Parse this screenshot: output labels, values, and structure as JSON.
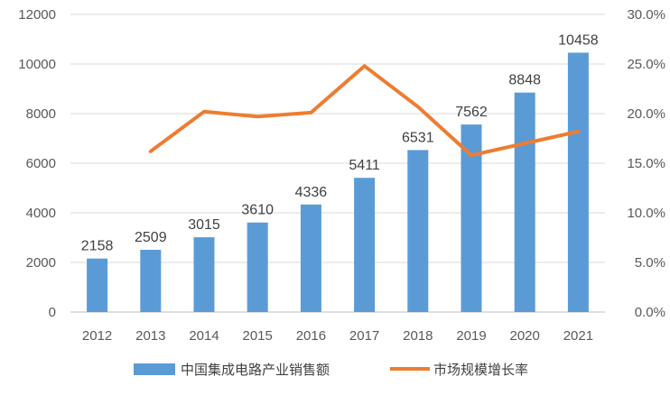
{
  "chart_data": {
    "type": "bar+line",
    "categories": [
      "2012",
      "2013",
      "2014",
      "2015",
      "2016",
      "2017",
      "2018",
      "2019",
      "2020",
      "2021"
    ],
    "series": [
      {
        "name": "中国集成电路产业销售额",
        "type": "bar",
        "axis": "left",
        "values": [
          2158,
          2509,
          3015,
          3610,
          4336,
          5411,
          6531,
          7562,
          8848,
          10458
        ],
        "color": "#5B9BD5"
      },
      {
        "name": "市场规模增长率",
        "type": "line",
        "axis": "right",
        "values": [
          null,
          16.2,
          20.2,
          19.7,
          20.1,
          24.8,
          20.7,
          15.8,
          17.0,
          18.2
        ],
        "color": "#ED7D31"
      }
    ],
    "y_left": {
      "min": 0,
      "max": 12000,
      "ticks": [
        "0",
        "2000",
        "4000",
        "6000",
        "8000",
        "10000",
        "12000"
      ]
    },
    "y_right": {
      "min": 0,
      "max": 30,
      "ticks": [
        "0.0%",
        "5.0%",
        "10.0%",
        "15.0%",
        "20.0%",
        "25.0%",
        "30.0%"
      ]
    },
    "grid": true,
    "legend": "bottom"
  }
}
